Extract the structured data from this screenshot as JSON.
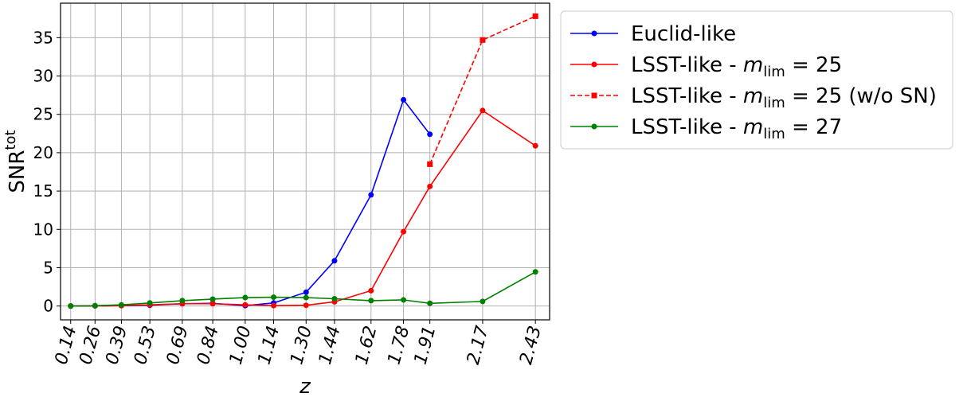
{
  "chart_data": {
    "type": "line",
    "x": [
      0.14,
      0.26,
      0.39,
      0.53,
      0.69,
      0.84,
      1.0,
      1.14,
      1.3,
      1.44,
      1.62,
      1.78,
      1.91,
      2.17,
      2.43
    ],
    "x_tick_labels": [
      "0.14",
      "0.26",
      "0.39",
      "0.53",
      "0.69",
      "0.84",
      "1.00",
      "1.14",
      "1.30",
      "1.44",
      "1.62",
      "1.78",
      "1.91",
      "2.17",
      "2.43"
    ],
    "xlabel": "z",
    "ylabel_base": "SNR",
    "ylabel_sup": "tot",
    "ylim": [
      -1.8,
      39.5
    ],
    "yticks": [
      0,
      5,
      10,
      15,
      20,
      25,
      30,
      35
    ],
    "grid": true,
    "legend_position": "outside-right-top",
    "series": [
      {
        "name_prefix": "Euclid-like",
        "name_math": "",
        "name_suffix": "",
        "color": "#0000ff",
        "marker": "circle",
        "dash": "solid",
        "points": [
          [
            0.14,
            0.0
          ],
          [
            0.26,
            0.02
          ],
          [
            0.39,
            0.05
          ],
          [
            0.53,
            0.1
          ],
          [
            0.69,
            0.3
          ],
          [
            0.84,
            0.35
          ],
          [
            1.0,
            0.05
          ],
          [
            1.14,
            0.4
          ],
          [
            1.3,
            1.8
          ],
          [
            1.44,
            5.9
          ],
          [
            1.62,
            14.5
          ],
          [
            1.78,
            26.9
          ],
          [
            1.91,
            22.4
          ]
        ]
      },
      {
        "name_prefix": "LSST-like - ",
        "name_math": "m",
        "name_sub": "lim",
        "name_suffix": " = 25",
        "color": "#ff0000",
        "marker": "circle",
        "dash": "solid",
        "points": [
          [
            0.14,
            0.0
          ],
          [
            0.26,
            0.02
          ],
          [
            0.39,
            0.05
          ],
          [
            0.53,
            0.15
          ],
          [
            0.69,
            0.3
          ],
          [
            0.84,
            0.3
          ],
          [
            1.0,
            0.15
          ],
          [
            1.14,
            0.05
          ],
          [
            1.3,
            0.1
          ],
          [
            1.44,
            0.55
          ],
          [
            1.62,
            2.0
          ],
          [
            1.78,
            9.7
          ],
          [
            1.91,
            15.6
          ],
          [
            2.17,
            25.5
          ],
          [
            2.43,
            20.9
          ]
        ]
      },
      {
        "name_prefix": "LSST-like - ",
        "name_math": "m",
        "name_sub": "lim",
        "name_suffix": " = 25 (w/o SN)",
        "color": "#ff0000",
        "marker": "square",
        "dash": "dashed",
        "points": [
          [
            1.91,
            18.5
          ],
          [
            2.17,
            34.7
          ],
          [
            2.43,
            37.8
          ]
        ]
      },
      {
        "name_prefix": "LSST-like - ",
        "name_math": "m",
        "name_sub": "lim",
        "name_suffix": " = 27",
        "color": "#008000",
        "marker": "circle",
        "dash": "solid",
        "points": [
          [
            0.14,
            0.0
          ],
          [
            0.26,
            0.05
          ],
          [
            0.39,
            0.15
          ],
          [
            0.53,
            0.4
          ],
          [
            0.69,
            0.7
          ],
          [
            0.84,
            0.9
          ],
          [
            1.0,
            1.1
          ],
          [
            1.14,
            1.15
          ],
          [
            1.3,
            1.1
          ],
          [
            1.44,
            0.95
          ],
          [
            1.62,
            0.7
          ],
          [
            1.78,
            0.8
          ],
          [
            1.91,
            0.35
          ],
          [
            2.17,
            0.6
          ],
          [
            2.43,
            4.45
          ]
        ]
      }
    ]
  }
}
